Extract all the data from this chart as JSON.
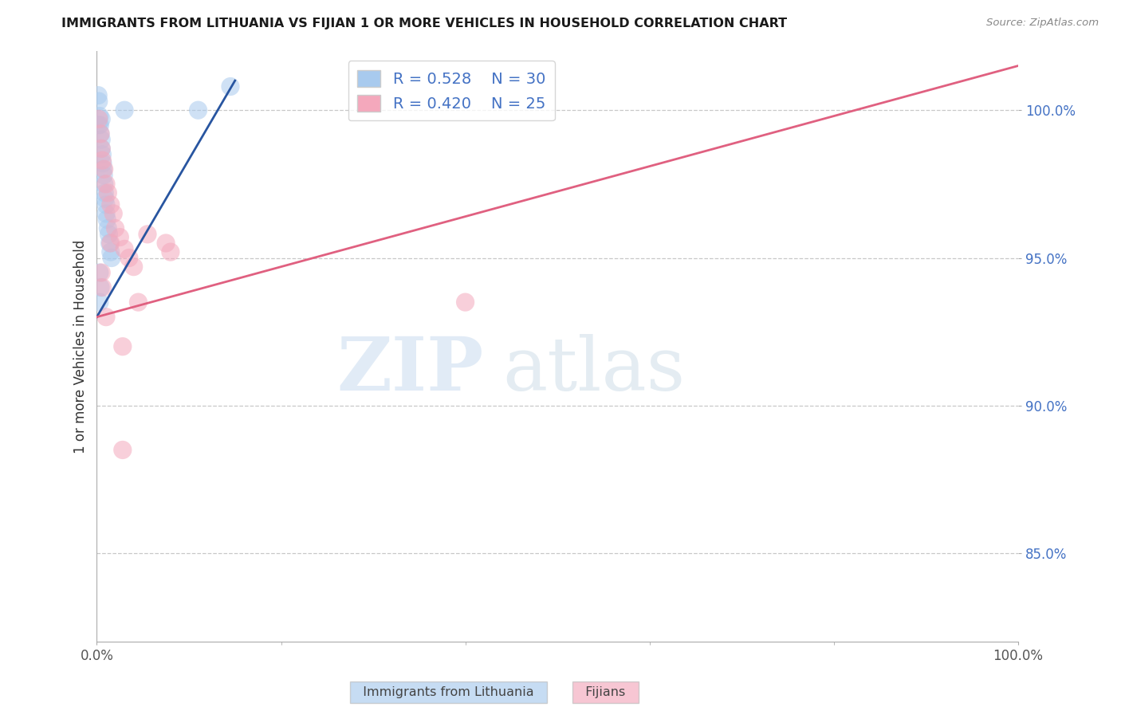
{
  "title": "IMMIGRANTS FROM LITHUANIA VS FIJIAN 1 OR MORE VEHICLES IN HOUSEHOLD CORRELATION CHART",
  "source": "Source: ZipAtlas.com",
  "ylabel_left": "1 or more Vehicles in Household",
  "xlim": [
    0,
    100
  ],
  "ylim": [
    82,
    102
  ],
  "yticks": [
    85.0,
    90.0,
    95.0,
    100.0
  ],
  "xticks": [
    0,
    100
  ],
  "xtick_labels": [
    "0.0%",
    "100.0%"
  ],
  "ytick_labels": [
    "85.0%",
    "90.0%",
    "95.0%",
    "100.0%"
  ],
  "legend_blue_label": "Immigrants from Lithuania",
  "legend_pink_label": "Fijians",
  "blue_R": "0.528",
  "blue_N": "30",
  "pink_R": "0.420",
  "pink_N": "25",
  "blue_color": "#A8CAEE",
  "pink_color": "#F4A8BC",
  "blue_line_color": "#2855A0",
  "pink_line_color": "#E06080",
  "blue_scatter_x": [
    0.15,
    0.2,
    0.3,
    0.35,
    0.4,
    0.5,
    0.5,
    0.6,
    0.65,
    0.7,
    0.75,
    0.8,
    0.85,
    0.9,
    1.0,
    1.0,
    1.1,
    1.2,
    1.3,
    1.4,
    1.5,
    1.6,
    0.3,
    0.4,
    3.0,
    0.2,
    0.3,
    0.5,
    11.0,
    14.5
  ],
  "blue_scatter_y": [
    100.5,
    100.3,
    99.8,
    99.5,
    99.2,
    99.0,
    98.7,
    98.5,
    98.2,
    98.0,
    97.8,
    97.5,
    97.2,
    97.0,
    96.8,
    96.5,
    96.3,
    96.0,
    95.8,
    95.5,
    95.2,
    95.0,
    94.5,
    94.0,
    100.0,
    99.5,
    93.5,
    99.7,
    100.0,
    100.8
  ],
  "pink_scatter_x": [
    0.2,
    0.4,
    0.5,
    0.6,
    0.8,
    1.0,
    1.2,
    1.5,
    1.8,
    2.0,
    2.5,
    3.0,
    3.5,
    4.0,
    4.5,
    0.5,
    0.6,
    1.0,
    1.5,
    2.8,
    2.8,
    5.5,
    7.5,
    8.0,
    40.0
  ],
  "pink_scatter_y": [
    99.7,
    99.2,
    98.7,
    98.3,
    98.0,
    97.5,
    97.2,
    96.8,
    96.5,
    96.0,
    95.7,
    95.3,
    95.0,
    94.7,
    93.5,
    94.5,
    94.0,
    93.0,
    95.5,
    92.0,
    88.5,
    95.8,
    95.5,
    95.2,
    93.5
  ],
  "blue_trendline_x": [
    0,
    15
  ],
  "blue_trendline_y": [
    93.0,
    101.0
  ],
  "pink_trendline_x": [
    0,
    100
  ],
  "pink_trendline_y": [
    93.0,
    101.5
  ],
  "watermark_zip": "ZIP",
  "watermark_atlas": "atlas",
  "background_color": "#FFFFFF",
  "grid_color": "#C8C8C8"
}
